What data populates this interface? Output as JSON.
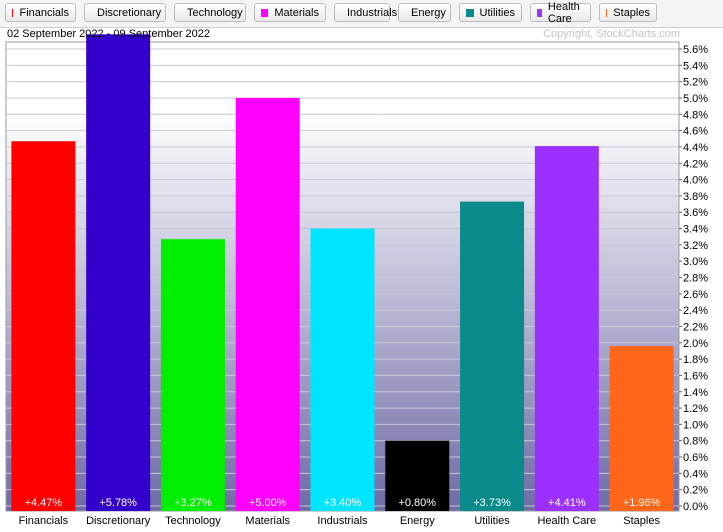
{
  "header": {
    "date_range": "02 September 2022 - 09 September 2022",
    "copyright": "Copyright, StockCharts.com"
  },
  "legend": [
    {
      "label": "Financials",
      "color": "#ff0000"
    },
    {
      "label": "Discretionary",
      "color": "#3300cc"
    },
    {
      "label": "Technology",
      "color": "#00ee00"
    },
    {
      "label": "Materials",
      "color": "#ff00ff"
    },
    {
      "label": "Industrials",
      "color": "#00e5ff"
    },
    {
      "label": "Energy",
      "color": "#000000"
    },
    {
      "label": "Utilities",
      "color": "#0a8a8a"
    },
    {
      "label": "Health Care",
      "color": "#9b30ff"
    },
    {
      "label": "Staples",
      "color": "#ff6619"
    }
  ],
  "chart_data": {
    "type": "bar",
    "categories": [
      "Financials",
      "Discretionary",
      "Technology",
      "Materials",
      "Industrials",
      "Energy",
      "Utilities",
      "Health Care",
      "Staples"
    ],
    "values": [
      4.47,
      5.78,
      3.27,
      5.0,
      3.4,
      0.8,
      3.73,
      4.41,
      1.96
    ],
    "value_labels": [
      "+4.47%",
      "+5.78%",
      "+3.27%",
      "+5.00%",
      "+3.40%",
      "+0.80%",
      "+3.73%",
      "+4.41%",
      "+1.96%"
    ],
    "colors": [
      "#ff0000",
      "#3300cc",
      "#00ee00",
      "#ff00ff",
      "#00e5ff",
      "#000000",
      "#0a8a8a",
      "#9b30ff",
      "#ff6619"
    ],
    "ylim": [
      0,
      5.7
    ],
    "yticks": [
      "0.0%",
      "0.2%",
      "0.4%",
      "0.6%",
      "0.8%",
      "1.0%",
      "1.2%",
      "1.4%",
      "1.6%",
      "1.8%",
      "2.0%",
      "2.2%",
      "2.4%",
      "2.6%",
      "2.8%",
      "3.0%",
      "3.2%",
      "3.4%",
      "3.6%",
      "3.8%",
      "4.0%",
      "4.2%",
      "4.4%",
      "4.6%",
      "4.8%",
      "5.0%",
      "5.2%",
      "5.4%",
      "5.6%"
    ],
    "ytick_values": [
      0.0,
      0.2,
      0.4,
      0.6,
      0.8,
      1.0,
      1.2,
      1.4,
      1.6,
      1.8,
      2.0,
      2.2,
      2.4,
      2.6,
      2.8,
      3.0,
      3.2,
      3.4,
      3.6,
      3.8,
      4.0,
      4.2,
      4.4,
      4.6,
      4.8,
      5.0,
      5.2,
      5.4,
      5.6
    ],
    "grid": true,
    "legend_position": "top",
    "y_axis_side": "right"
  }
}
